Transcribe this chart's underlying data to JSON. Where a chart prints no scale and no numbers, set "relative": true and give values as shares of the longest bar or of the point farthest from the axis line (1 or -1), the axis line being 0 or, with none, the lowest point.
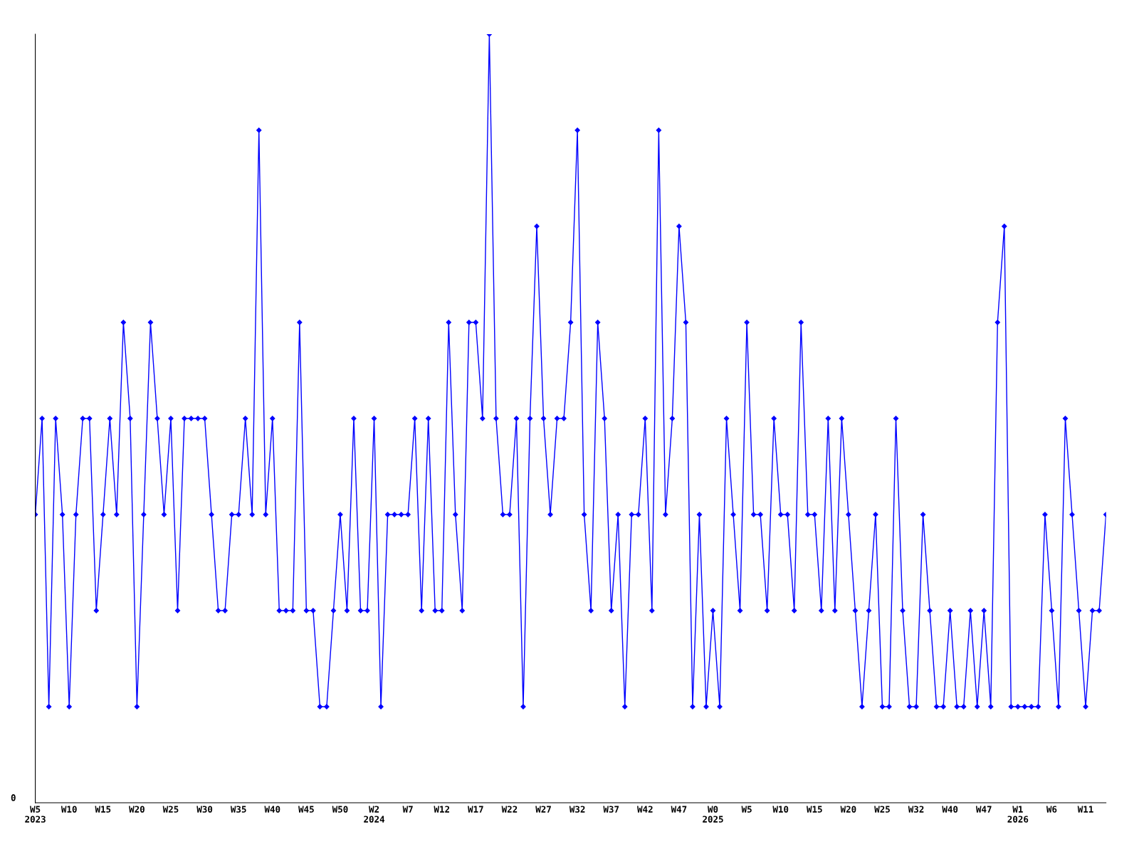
{
  "chart_data": {
    "type": "line",
    "relative": true,
    "annotations": [
      "0"
    ],
    "marker": "diamond",
    "line_style": "solid",
    "grid": false,
    "legend": false,
    "categories": [
      "W5\n2023",
      null,
      null,
      null,
      null,
      "W10",
      null,
      null,
      null,
      null,
      "W15",
      null,
      null,
      null,
      null,
      "W20",
      null,
      null,
      null,
      null,
      "W25",
      null,
      null,
      null,
      null,
      "W30",
      null,
      null,
      null,
      null,
      "W35",
      null,
      null,
      null,
      null,
      "W40",
      null,
      null,
      null,
      null,
      "W45",
      null,
      null,
      null,
      null,
      "W50",
      null,
      null,
      null,
      null,
      "W2\n2024",
      null,
      null,
      null,
      null,
      "W7",
      null,
      null,
      null,
      null,
      "W12",
      null,
      null,
      null,
      null,
      "W17",
      null,
      null,
      null,
      null,
      "W22",
      null,
      null,
      null,
      null,
      "W27",
      null,
      null,
      null,
      null,
      "W32",
      null,
      null,
      null,
      null,
      "W37",
      null,
      null,
      null,
      null,
      "W42",
      null,
      null,
      null,
      null,
      "W47",
      null,
      null,
      null,
      null,
      "W0\n2025",
      null,
      null,
      null,
      null,
      "W5",
      null,
      null,
      null,
      null,
      "W10",
      null,
      null,
      null,
      null,
      "W15",
      null,
      null,
      null,
      null,
      "W20",
      null,
      null,
      null,
      null,
      "W25",
      null,
      null,
      null,
      null,
      "W32",
      null,
      null,
      null,
      null,
      "W40",
      null,
      null,
      null,
      null,
      "W47",
      null,
      null,
      null,
      null,
      "W1\n2026",
      null,
      null,
      null,
      null,
      "W6",
      null,
      null,
      null,
      null,
      "W11",
      null,
      null,
      null
    ],
    "series": [
      {
        "color": "#0000ff",
        "values": [
          0.375,
          0.5,
          0.125,
          0.5,
          0.375,
          0.125,
          0.375,
          0.5,
          0.5,
          0.25,
          0.375,
          0.5,
          0.375,
          0.625,
          0.5,
          0.125,
          0.375,
          0.625,
          0.5,
          0.375,
          0.5,
          0.25,
          0.5,
          0.5,
          0.5,
          0.5,
          0.375,
          0.25,
          0.25,
          0.375,
          0.375,
          0.5,
          0.375,
          0.875,
          0.375,
          0.5,
          0.25,
          0.25,
          0.25,
          0.625,
          0.25,
          0.25,
          0.125,
          0.125,
          0.25,
          0.375,
          0.25,
          0.5,
          0.25,
          0.25,
          0.5,
          0.125,
          0.375,
          0.375,
          0.375,
          0.375,
          0.5,
          0.25,
          0.5,
          0.25,
          0.25,
          0.625,
          0.375,
          0.25,
          0.625,
          0.625,
          0.5,
          1,
          0.5,
          0.375,
          0.375,
          0.5,
          0.125,
          0.5,
          0.75,
          0.5,
          0.375,
          0.5,
          0.5,
          0.625,
          0.875,
          0.375,
          0.25,
          0.625,
          0.5,
          0.25,
          0.375,
          0.125,
          0.375,
          0.375,
          0.5,
          0.25,
          0.875,
          0.375,
          0.5,
          0.75,
          0.625,
          0.125,
          0.375,
          0.125,
          0.25,
          0.125,
          0.5,
          0.375,
          0.25,
          0.625,
          0.375,
          0.375,
          0.25,
          0.5,
          0.375,
          0.375,
          0.25,
          0.625,
          0.375,
          0.375,
          0.25,
          0.5,
          0.25,
          0.5,
          0.375,
          0.25,
          0.125,
          0.25,
          0.375,
          0.125,
          0.125,
          0.5,
          0.25,
          0.125,
          0.125,
          0.375,
          0.25,
          0.125,
          0.125,
          0.25,
          0.125,
          0.125,
          0.25,
          0.125,
          0.25,
          0.125,
          0.625,
          0.75,
          0.125,
          0.125,
          0.125,
          0.125,
          0.125,
          0.375,
          0.25,
          0.125,
          0.5,
          0.375,
          0.25,
          0.125,
          0.25,
          0.25,
          0.375
        ]
      }
    ]
  }
}
